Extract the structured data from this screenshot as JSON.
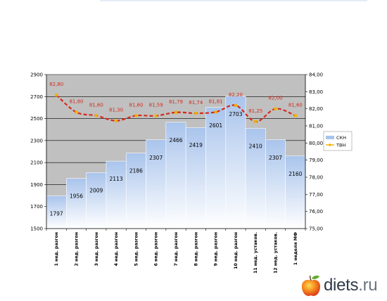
{
  "chart_data": {
    "type": "bar+line",
    "categories": [
      "1 нед. разгон",
      "2 нед. разгон",
      "3 нед. разгон",
      "4 нед. разгон",
      "5 нед. разгон",
      "6 нед. разгон",
      "7 нед. разгон",
      "8 нед. разгон",
      "9 нед. разгон",
      "10 нед. разгон",
      "11 нед. устаков.",
      "12 нед. устаков.",
      "1 неделя МФ"
    ],
    "series": [
      {
        "name": "СКН",
        "type": "bar",
        "axis": "left",
        "values": [
          1797,
          1956,
          2009,
          2113,
          2186,
          2307,
          2466,
          2419,
          2601,
          2703,
          2410,
          2307,
          2160
        ]
      },
      {
        "name": "ТВН",
        "type": "line",
        "axis": "right",
        "values": [
          82.8,
          81.8,
          81.6,
          81.3,
          81.6,
          81.59,
          81.79,
          81.74,
          81.81,
          82.2,
          81.25,
          82.0,
          81.6
        ],
        "labels": [
          "82,80",
          "81,80",
          "81,60",
          "81,30",
          "81,60",
          "81,59",
          "81,79",
          "81,74",
          "81,81",
          "82,20",
          "81,25",
          "82,00",
          "81,60"
        ]
      }
    ],
    "bar_labels": [
      "1797",
      "1956",
      "2009",
      "2113",
      "2186",
      "2307",
      "2466",
      "2419",
      "2601",
      "2703",
      "2410",
      "2307",
      "2160"
    ],
    "y_left": {
      "min": 1500,
      "max": 2900,
      "ticks": [
        "1500",
        "1700",
        "1900",
        "2100",
        "2300",
        "2500",
        "2700",
        "2900"
      ]
    },
    "y_right": {
      "min": 75,
      "max": 84,
      "ticks": [
        "75,00",
        "76,00",
        "77,00",
        "78,00",
        "79,00",
        "80,00",
        "81,00",
        "82,00",
        "83,00",
        "84,00"
      ]
    },
    "grid": true,
    "legend": "right",
    "colors": {
      "plot_bg": "#c0c0c0",
      "bar_top": "#a9c4ec",
      "bar_bottom": "#ffffff",
      "line": "#f0b000",
      "line_labels": "#d42a1b",
      "gridline": "#000000"
    }
  },
  "watermark": {
    "brand": "diets",
    "tld": ".ru"
  }
}
